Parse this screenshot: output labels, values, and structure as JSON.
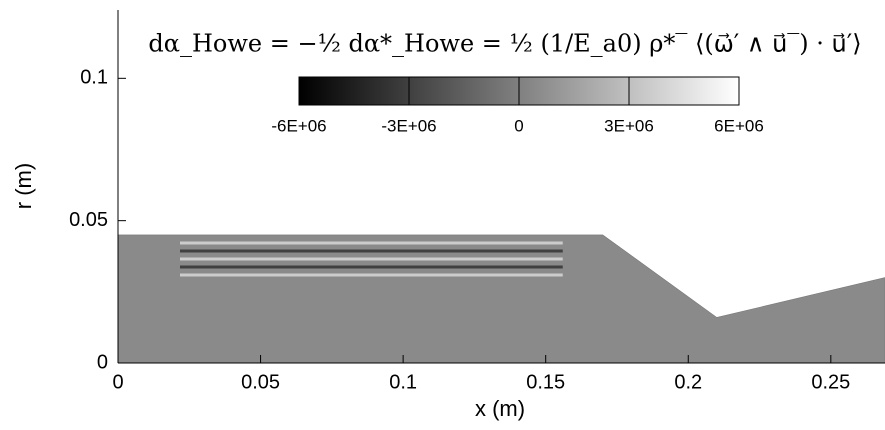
{
  "chart_data": {
    "type": "contour",
    "title": "dα_Howe = −½ dα*_Howe = ½ (1/E_a0) ρ*‾ ⟨(ω⃗′ ∧ u⃗‾) · u⃗′⟩",
    "x_label": "x (m)",
    "y_label": "r (m)",
    "xlim": [
      0,
      0.269
    ],
    "ylim": [
      0,
      0.124
    ],
    "xticks": [
      0,
      0.05,
      0.1,
      0.15,
      0.2,
      0.25
    ],
    "yticks": [
      0,
      0.05,
      0.1
    ],
    "wall": {
      "x": [
        0,
        0.17,
        0.21,
        0.269
      ],
      "r": [
        0.045,
        0.045,
        0.016,
        0.03
      ]
    },
    "colorbar": {
      "clim": [
        -6000000,
        6000000
      ],
      "ticks": [
        {
          "value": -6000000,
          "label": "-6E+06"
        },
        {
          "value": -3000000,
          "label": "-3E+06"
        },
        0,
        {
          "value": 3000000,
          "label": "3E+06"
        },
        {
          "value": 6000000,
          "label": "6E+06"
        }
      ]
    }
  }
}
